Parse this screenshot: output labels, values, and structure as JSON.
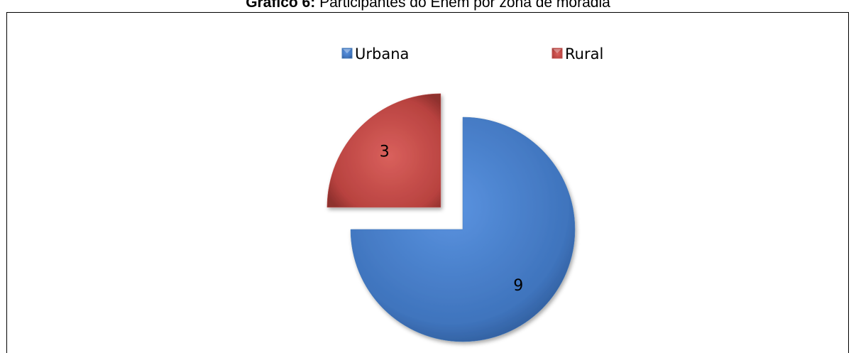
{
  "chart_data": {
    "type": "pie",
    "title_label": "Gráfico 6:",
    "title": "Participantes do Enem por zona de moradia",
    "categories": [
      "Urbana",
      "Rural"
    ],
    "values": [
      9,
      3
    ],
    "colors": [
      "#4a7ebb",
      "#c0504d"
    ],
    "exploded": [
      false,
      true
    ],
    "start_angle": 0,
    "direction": "clockwise",
    "legend": "top"
  }
}
